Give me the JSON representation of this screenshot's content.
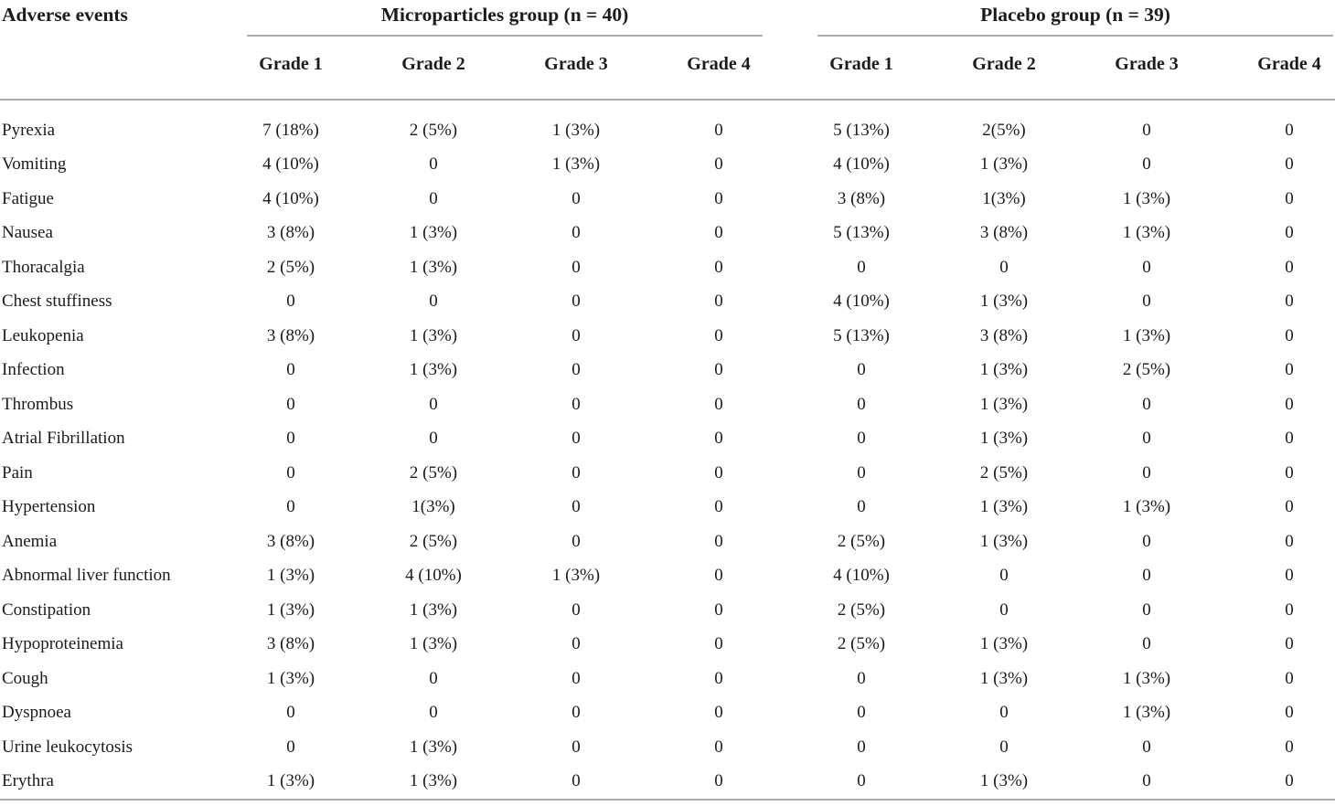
{
  "colors": {
    "background": "#ffffff",
    "text": "#1b1b1b",
    "rule": "#ababab"
  },
  "table": {
    "corner_header": "Adverse events",
    "groups": [
      {
        "key": "microparticles",
        "label": "Microparticles group (n = 40)"
      },
      {
        "key": "placebo",
        "label": "Placebo group (n = 39)"
      }
    ],
    "grade_headers": [
      "Grade 1",
      "Grade 2",
      "Grade 3",
      "Grade 4"
    ],
    "rows": [
      {
        "event": "Pyrexia",
        "microparticles": [
          "7 (18%)",
          "2 (5%)",
          "1 (3%)",
          "0"
        ],
        "placebo": [
          "5 (13%)",
          "2(5%)",
          "0",
          "0"
        ]
      },
      {
        "event": "Vomiting",
        "microparticles": [
          "4 (10%)",
          "0",
          "1 (3%)",
          "0"
        ],
        "placebo": [
          "4 (10%)",
          "1 (3%)",
          "0",
          "0"
        ]
      },
      {
        "event": "Fatigue",
        "microparticles": [
          "4 (10%)",
          "0",
          "0",
          "0"
        ],
        "placebo": [
          "3 (8%)",
          "1(3%)",
          "1 (3%)",
          "0"
        ]
      },
      {
        "event": "Nausea",
        "microparticles": [
          "3 (8%)",
          "1 (3%)",
          "0",
          "0"
        ],
        "placebo": [
          "5 (13%)",
          "3 (8%)",
          "1 (3%)",
          "0"
        ]
      },
      {
        "event": "Thoracalgia",
        "microparticles": [
          "2 (5%)",
          "1 (3%)",
          "0",
          "0"
        ],
        "placebo": [
          "0",
          "0",
          "0",
          "0"
        ]
      },
      {
        "event": "Chest stuffiness",
        "microparticles": [
          "0",
          "0",
          "0",
          "0"
        ],
        "placebo": [
          "4 (10%)",
          "1 (3%)",
          "0",
          "0"
        ]
      },
      {
        "event": "Leukopenia",
        "microparticles": [
          "3 (8%)",
          "1 (3%)",
          "0",
          "0"
        ],
        "placebo": [
          "5 (13%)",
          "3 (8%)",
          "1 (3%)",
          "0"
        ]
      },
      {
        "event": "Infection",
        "microparticles": [
          "0",
          "1 (3%)",
          "0",
          "0"
        ],
        "placebo": [
          "0",
          "1 (3%)",
          "2 (5%)",
          "0"
        ]
      },
      {
        "event": "Thrombus",
        "microparticles": [
          "0",
          "0",
          "0",
          "0"
        ],
        "placebo": [
          "0",
          "1 (3%)",
          "0",
          "0"
        ]
      },
      {
        "event": "Atrial Fibrillation",
        "microparticles": [
          "0",
          "0",
          "0",
          "0"
        ],
        "placebo": [
          "0",
          "1 (3%)",
          "0",
          "0"
        ]
      },
      {
        "event": "Pain",
        "microparticles": [
          "0",
          "2 (5%)",
          "0",
          "0"
        ],
        "placebo": [
          "0",
          "2 (5%)",
          "0",
          "0"
        ]
      },
      {
        "event": "Hypertension",
        "microparticles": [
          "0",
          "1(3%)",
          "0",
          "0"
        ],
        "placebo": [
          "0",
          "1 (3%)",
          "1 (3%)",
          "0"
        ]
      },
      {
        "event": "Anemia",
        "microparticles": [
          "3 (8%)",
          "2 (5%)",
          "0",
          "0"
        ],
        "placebo": [
          "2 (5%)",
          "1 (3%)",
          "0",
          "0"
        ]
      },
      {
        "event": "Abnormal liver function",
        "microparticles": [
          "1 (3%)",
          "4 (10%)",
          "1 (3%)",
          "0"
        ],
        "placebo": [
          "4 (10%)",
          "0",
          "0",
          "0"
        ]
      },
      {
        "event": "Constipation",
        "microparticles": [
          "1 (3%)",
          "1 (3%)",
          "0",
          "0"
        ],
        "placebo": [
          "2 (5%)",
          "0",
          "0",
          "0"
        ]
      },
      {
        "event": "Hypoproteinemia",
        "microparticles": [
          "3 (8%)",
          "1 (3%)",
          "0",
          "0"
        ],
        "placebo": [
          "2 (5%)",
          "1 (3%)",
          "0",
          "0"
        ]
      },
      {
        "event": "Cough",
        "microparticles": [
          "1 (3%)",
          "0",
          "0",
          "0"
        ],
        "placebo": [
          "0",
          "1 (3%)",
          "1 (3%)",
          "0"
        ]
      },
      {
        "event": "Dyspnoea",
        "microparticles": [
          "0",
          "0",
          "0",
          "0"
        ],
        "placebo": [
          "0",
          "0",
          "1 (3%)",
          "0"
        ]
      },
      {
        "event": "Urine leukocytosis",
        "microparticles": [
          "0",
          "1 (3%)",
          "0",
          "0"
        ],
        "placebo": [
          "0",
          "0",
          "0",
          "0"
        ]
      },
      {
        "event": "Erythra",
        "microparticles": [
          "1 (3%)",
          "1 (3%)",
          "0",
          "0"
        ],
        "placebo": [
          "0",
          "1 (3%)",
          "0",
          "0"
        ]
      }
    ]
  }
}
